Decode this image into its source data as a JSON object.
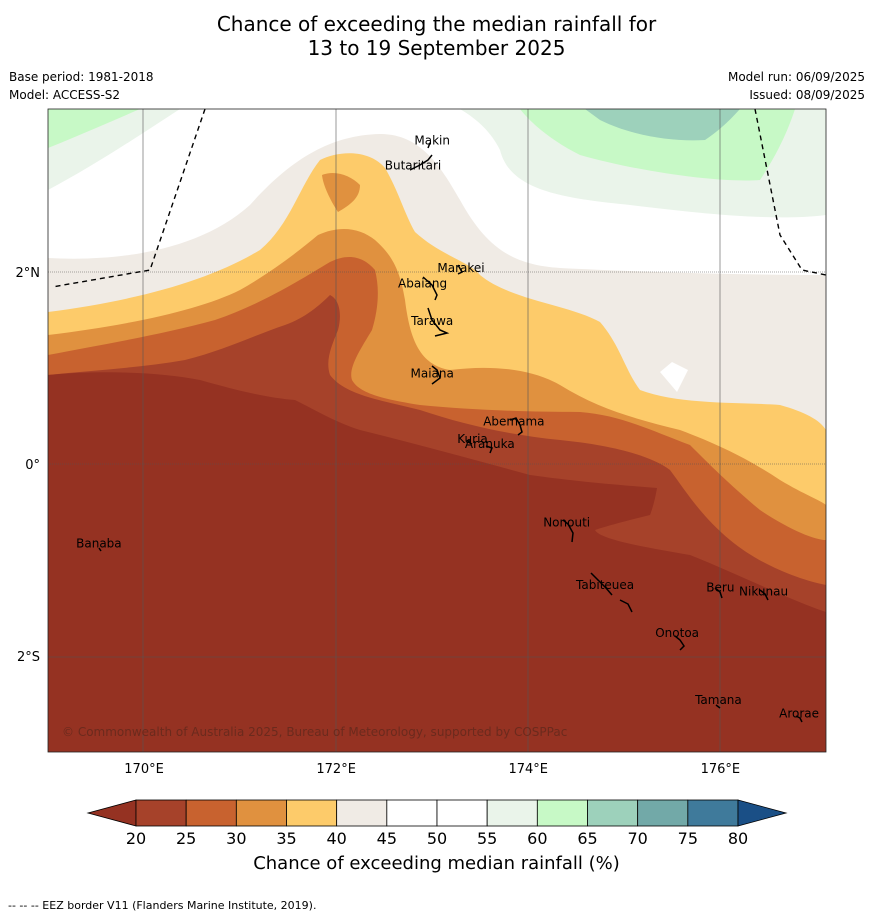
{
  "title": {
    "line1": "Chance of exceeding the median rainfall for",
    "line2": "13 to 19 September 2025"
  },
  "meta": {
    "base_period": "Base period: 1981-2018",
    "model": "Model: ACCESS-S2",
    "model_run": "Model run: 06/09/2025",
    "issued": "Issued: 08/09/2025"
  },
  "map": {
    "lon_range": [
      169,
      177.1
    ],
    "lat_range": [
      -3.0,
      3.7
    ],
    "lon_ticks": [
      {
        "value": 170,
        "label": "170°E"
      },
      {
        "value": 172,
        "label": "172°E"
      },
      {
        "value": 174,
        "label": "174°E"
      },
      {
        "value": 176,
        "label": "176°E"
      }
    ],
    "lat_ticks": [
      {
        "value": 2,
        "label": "2°N"
      },
      {
        "value": 0,
        "label": "0°"
      },
      {
        "value": -2,
        "label": "2°S"
      }
    ],
    "places": [
      {
        "name": "Makin",
        "lon": 173.0,
        "lat": 3.33
      },
      {
        "name": "Butaritari",
        "lon": 172.8,
        "lat": 3.07
      },
      {
        "name": "Marakei",
        "lon": 173.3,
        "lat": 2.0
      },
      {
        "name": "Abaiang",
        "lon": 172.9,
        "lat": 1.84
      },
      {
        "name": "Tarawa",
        "lon": 173.0,
        "lat": 1.45
      },
      {
        "name": "Maiana",
        "lon": 173.0,
        "lat": 0.9
      },
      {
        "name": "Abemama",
        "lon": 173.85,
        "lat": 0.4
      },
      {
        "name": "Kuria",
        "lon": 173.42,
        "lat": 0.22
      },
      {
        "name": "Aranuka",
        "lon": 173.6,
        "lat": 0.17
      },
      {
        "name": "Nonouti",
        "lon": 174.4,
        "lat": -0.65
      },
      {
        "name": "Banaba",
        "lon": 169.53,
        "lat": -0.87
      },
      {
        "name": "Tabiteuea",
        "lon": 174.8,
        "lat": -1.3
      },
      {
        "name": "Beru",
        "lon": 176.0,
        "lat": -1.33
      },
      {
        "name": "Nikunau",
        "lon": 176.45,
        "lat": -1.37
      },
      {
        "name": "Onotoa",
        "lon": 175.55,
        "lat": -1.8
      },
      {
        "name": "Tamana",
        "lon": 175.98,
        "lat": -2.5
      },
      {
        "name": "Arorae",
        "lon": 176.82,
        "lat": -2.64
      }
    ],
    "copyright": "© Commonwealth of Australia 2025, Bureau of Meteorology, supported by COSPPac"
  },
  "colorbar": {
    "ticks": [
      "20",
      "25",
      "30",
      "35",
      "40",
      "45",
      "50",
      "55",
      "60",
      "65",
      "70",
      "75",
      "80"
    ],
    "colors": [
      "#a6422a",
      "#c8622f",
      "#e0913f",
      "#fdcb6a",
      "#f0ebe5",
      "#ffffff",
      "#ffffff",
      "#eaf4ea",
      "#c7f9c6",
      "#9dd1bb",
      "#72a9a8",
      "#3f7a9b"
    ],
    "under_color": "#953222",
    "over_color": "#1a4f86",
    "title": "Chance of exceeding median rainfall (%)"
  },
  "footer": "--  --  -- EEZ border V11 (Flanders Marine Institute, 2019)."
}
